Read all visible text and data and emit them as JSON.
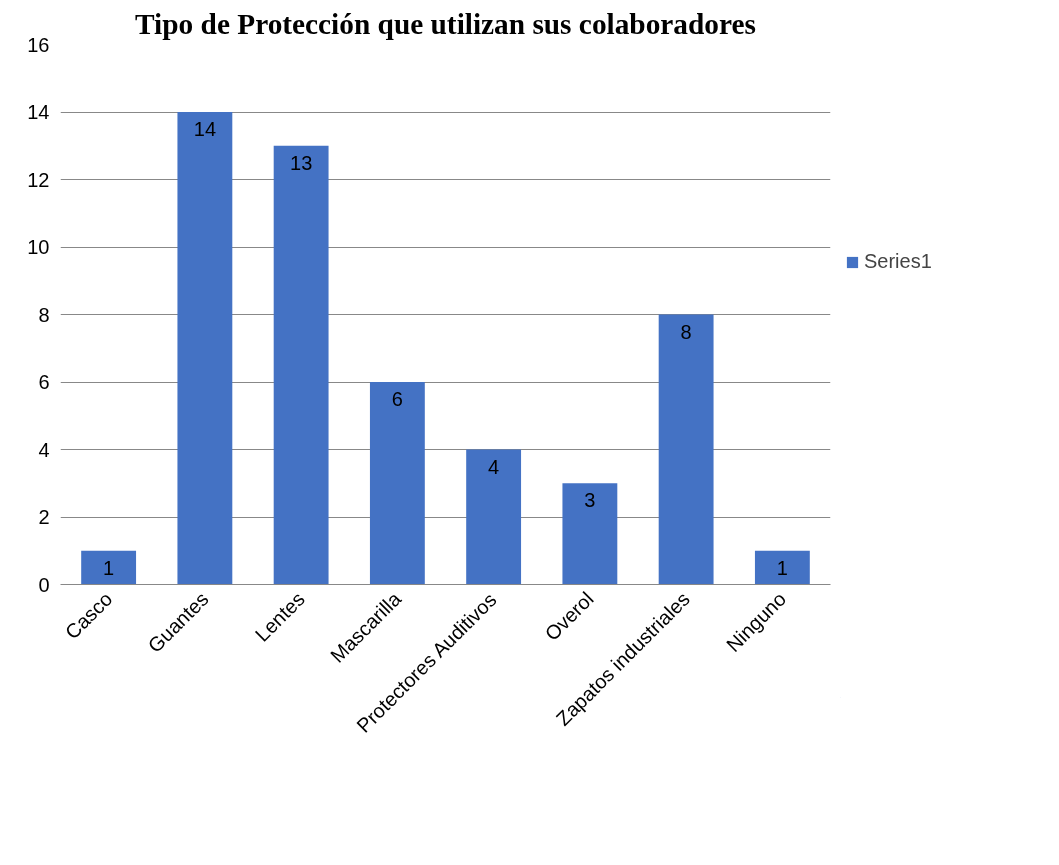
{
  "chart_data": {
    "type": "bar",
    "title": "Tipo de Protección que utilizan sus colaboradores",
    "categories": [
      "Casco",
      "Guantes",
      "Lentes",
      "Mascarilla",
      "Protectores Auditivos",
      "Overol",
      "Zapatos industriales",
      "Ninguno"
    ],
    "series": [
      {
        "name": "Series1",
        "color": "#4472c4",
        "values": [
          1,
          14,
          13,
          6,
          4,
          3,
          8,
          1
        ]
      }
    ],
    "ylim": [
      0,
      16
    ],
    "yticks": [
      0,
      2,
      4,
      6,
      8,
      10,
      12,
      14,
      16
    ],
    "grid": "y",
    "legend": "right",
    "data_labels": true
  }
}
